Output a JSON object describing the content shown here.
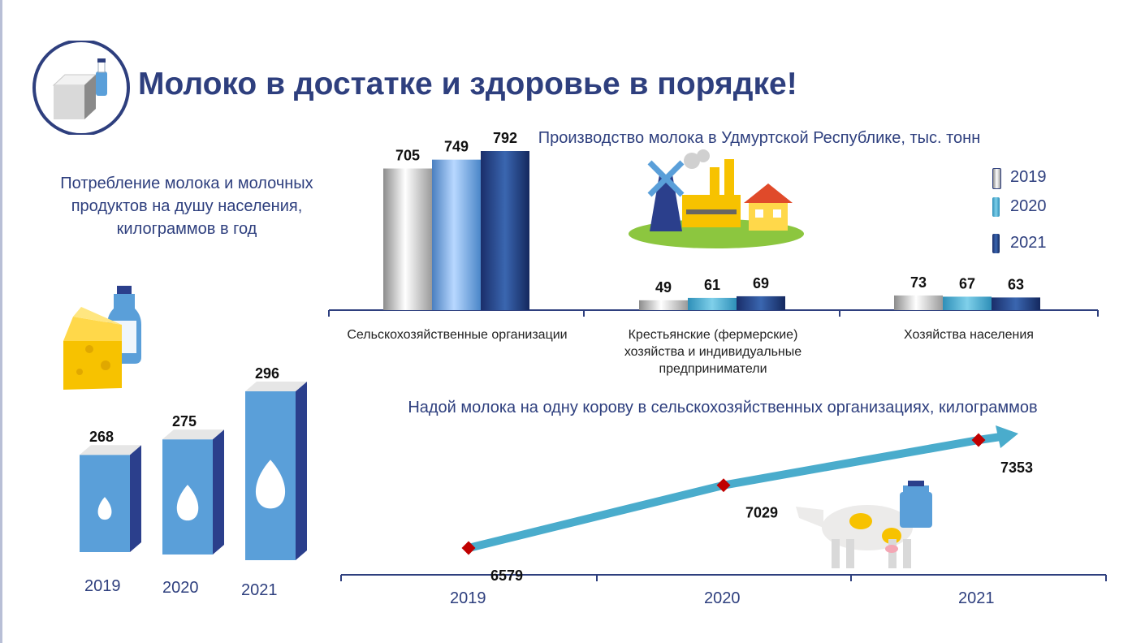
{
  "page": {
    "title": "Молоко в достатке и здоровье в порядке!"
  },
  "consumption": {
    "title": "Потребление молока и молочных продуктов на душу населения, килограммов в год"
  },
  "production": {
    "title": "Производство молока в Удмуртской Республике, тыс. тонн"
  },
  "yield": {
    "title": "Надой молока на одну корову в сельскохозяйственных организациях, килограммов"
  },
  "colors": {
    "title": "#2e3f7e",
    "carton_front": "#5a9fd9",
    "carton_side": "#2b3f8c",
    "arrow": "#4aaccc",
    "marker": "#c00000"
  },
  "chart_data": [
    {
      "type": "bar",
      "categories": [
        "2019",
        "2020",
        "2021"
      ],
      "values": [
        268,
        275,
        296
      ]
    },
    {
      "type": "bar",
      "title": "Производство молока в Удмуртской Республике, тыс. тонн",
      "categories": [
        "Сельскохозяйственные организации",
        "Крестьянские (фермерские) хозяйства и индивидуальные предприниматели",
        "Хозяйства населения"
      ],
      "series": [
        {
          "name": "2019",
          "values": [
            705,
            49,
            73
          ]
        },
        {
          "name": "2020",
          "values": [
            749,
            61,
            67
          ]
        },
        {
          "name": "2021",
          "values": [
            792,
            69,
            63
          ]
        }
      ],
      "legend": "top-right"
    },
    {
      "type": "line",
      "title": "Надой молока на одну корову в сельскохозяйственных организациях, килограммов",
      "x": [
        "2019",
        "2020",
        "2021"
      ],
      "values": [
        6579,
        7029,
        7353
      ]
    }
  ]
}
